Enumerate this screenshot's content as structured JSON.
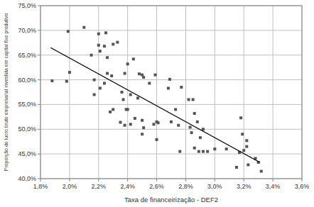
{
  "chart_data": {
    "type": "scatter",
    "x_label": "Taxa de financeirização - DEF2",
    "y_label": "Proporção do lucro bruto empresarial investida em capital fixo produtivo",
    "xlim": [
      1.8,
      3.6
    ],
    "ylim": [
      40,
      75
    ],
    "xticks": [
      {
        "value": 1.8,
        "label": "1,8%"
      },
      {
        "value": 2.0,
        "label": "2,0%"
      },
      {
        "value": 2.2,
        "label": "2,2%"
      },
      {
        "value": 2.4,
        "label": "2,4%"
      },
      {
        "value": 2.6,
        "label": "2,6%"
      },
      {
        "value": 2.8,
        "label": "2,8%"
      },
      {
        "value": 3.0,
        "label": "3,0%"
      },
      {
        "value": 3.2,
        "label": "3,2%"
      },
      {
        "value": 3.4,
        "label": "3,4%"
      },
      {
        "value": 3.6,
        "label": "3,6%"
      }
    ],
    "yticks": [
      {
        "value": 40,
        "label": "40,0%"
      },
      {
        "value": 45,
        "label": "45,0%"
      },
      {
        "value": 50,
        "label": "50,0%"
      },
      {
        "value": 55,
        "label": "55,0%"
      },
      {
        "value": 60,
        "label": "60,0%"
      },
      {
        "value": 65,
        "label": "65,0%"
      },
      {
        "value": 70,
        "label": "70,0%"
      },
      {
        "value": 75,
        "label": "75,0%"
      }
    ],
    "grid": true,
    "series": [
      {
        "type": "scatter",
        "marker": "square",
        "color": "#555555",
        "x": [
          1.88,
          1.98,
          1.99,
          2.0,
          2.1,
          2.15,
          2.17,
          2.17,
          2.2,
          2.2,
          2.21,
          2.21,
          2.24,
          2.25,
          2.26,
          2.26,
          2.24,
          2.28,
          2.29,
          2.3,
          2.3,
          2.33,
          2.35,
          2.36,
          2.37,
          2.38,
          2.38,
          2.39,
          2.4,
          2.4,
          2.42,
          2.42,
          2.44,
          2.45,
          2.47,
          2.48,
          2.5,
          2.5,
          2.5,
          2.51,
          2.51,
          2.55,
          2.58,
          2.59,
          2.6,
          2.61,
          2.6,
          2.68,
          2.69,
          2.7,
          2.73,
          2.75,
          2.77,
          2.76,
          2.82,
          2.83,
          2.84,
          2.85,
          2.86,
          2.88,
          2.86,
          2.89,
          2.9,
          2.92,
          2.92,
          2.95,
          3.0,
          3.08,
          3.15,
          3.17,
          3.18,
          3.19,
          3.2,
          3.22,
          3.22,
          3.23,
          3.28,
          3.32,
          3.3
        ],
        "values": [
          59.8,
          59.7,
          69.8,
          61.5,
          70.6,
          65.0,
          57.0,
          60.0,
          69.3,
          67.0,
          65.8,
          58.3,
          66.8,
          69.5,
          61.3,
          64.5,
          59.3,
          53.5,
          60.8,
          54.0,
          67.2,
          67.6,
          51.4,
          57.5,
          56.0,
          61.3,
          50.8,
          54.0,
          54.0,
          63.2,
          51.0,
          57.0,
          64.2,
          52.2,
          56.3,
          61.2,
          61.0,
          51.8,
          49.0,
          60.5,
          50.3,
          59.3,
          51.0,
          61.0,
          51.5,
          51.3,
          47.9,
          58.3,
          60.1,
          51.5,
          54.0,
          50.8,
          58.5,
          45.5,
          56.0,
          50.4,
          49.3,
          56.0,
          53.2,
          51.5,
          46.2,
          45.5,
          48.3,
          50.0,
          45.5,
          45.5,
          46.0,
          46.0,
          42.3,
          45.3,
          52.3,
          49.0,
          45.7,
          46.5,
          47.7,
          42.8,
          44.1,
          41.5,
          43.3
        ]
      },
      {
        "type": "line",
        "line_style": "solid",
        "color": "#000000",
        "x": [
          1.87,
          3.31
        ],
        "values": [
          66.5,
          43.3
        ]
      }
    ]
  }
}
